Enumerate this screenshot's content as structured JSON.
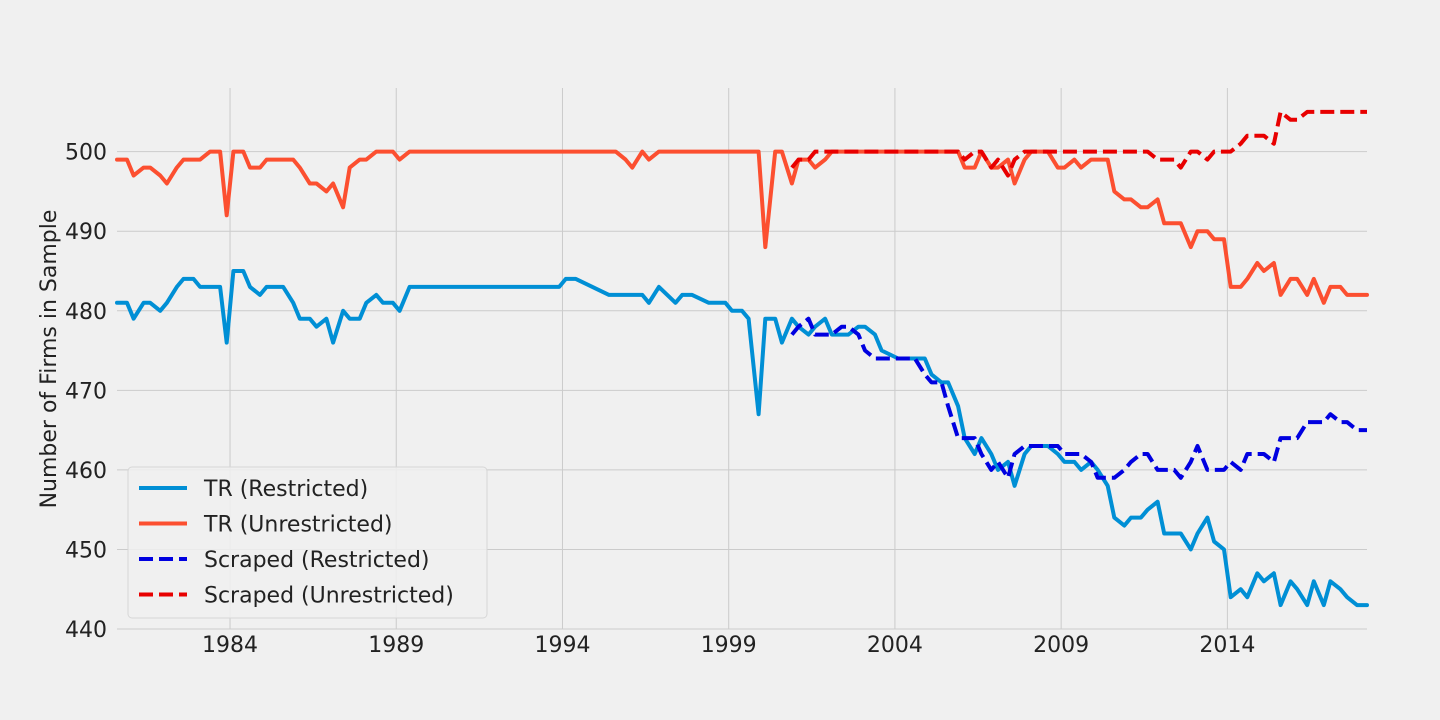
{
  "chart_data": {
    "type": "line",
    "title": "",
    "xlabel": "",
    "ylabel": "Number of Firms in Sample",
    "xlim": [
      1980.6,
      2018.2
    ],
    "ylim": [
      440,
      508
    ],
    "x_ticks": [
      1984,
      1989,
      1994,
      1999,
      2004,
      2009,
      2014
    ],
    "y_ticks": [
      440,
      450,
      460,
      470,
      480,
      490,
      500
    ],
    "grid": true,
    "legend_position": "lower-left",
    "series": [
      {
        "name": "TR (Restricted)",
        "color": "#008fd5",
        "style": "solid",
        "x": [
          1980.6,
          1980.9,
          1981.1,
          1981.4,
          1981.6,
          1981.9,
          1982.1,
          1982.4,
          1982.6,
          1982.9,
          1983.1,
          1983.4,
          1983.6,
          1983.7,
          1983.9,
          1984.1,
          1984.4,
          1984.6,
          1984.9,
          1985.1,
          1985.4,
          1985.6,
          1985.9,
          1986.1,
          1986.4,
          1986.6,
          1986.9,
          1987.1,
          1987.4,
          1987.6,
          1987.9,
          1988.1,
          1988.4,
          1988.6,
          1988.9,
          1989.1,
          1989.4,
          1989.6,
          1990.4,
          1991.4,
          1992.4,
          1993.4,
          1993.6,
          1993.9,
          1994.1,
          1994.4,
          1995.4,
          1995.9,
          1996.1,
          1996.4,
          1996.6,
          1996.9,
          1997.4,
          1997.6,
          1997.9,
          1998.4,
          1998.6,
          1998.9,
          1999.1,
          1999.4,
          1999.6,
          1999.9,
          2000.1,
          2000.4,
          2000.6,
          2000.9,
          2001.1,
          2001.4,
          2001.6,
          2001.9,
          2002.1,
          2002.4,
          2002.6,
          2002.9,
          2003.1,
          2003.4,
          2003.6,
          2004.1,
          2004.6,
          2004.9,
          2005.1,
          2005.4,
          2005.6,
          2005.9,
          2006.1,
          2006.4,
          2006.6,
          2006.9,
          2007.1,
          2007.4,
          2007.6,
          2007.9,
          2008.1,
          2008.4,
          2008.6,
          2008.9,
          2009.1,
          2009.4,
          2009.6,
          2009.9,
          2010.1,
          2010.4,
          2010.6,
          2010.9,
          2011.1,
          2011.4,
          2011.6,
          2011.9,
          2012.1,
          2012.4,
          2012.6,
          2012.9,
          2013.1,
          2013.4,
          2013.6,
          2013.9,
          2014.1,
          2014.4,
          2014.6,
          2014.9,
          2015.1,
          2015.4,
          2015.6,
          2015.9,
          2016.1,
          2016.4,
          2016.6,
          2016.9,
          2017.1,
          2017.4,
          2017.6,
          2017.9,
          2018.2
        ],
        "y": [
          481,
          481,
          479,
          481,
          481,
          480,
          481,
          483,
          484,
          484,
          483,
          483,
          483,
          483,
          476,
          485,
          485,
          483,
          482,
          483,
          483,
          483,
          481,
          479,
          479,
          478,
          479,
          476,
          480,
          479,
          479,
          481,
          482,
          481,
          481,
          480,
          483,
          483,
          483,
          483,
          483,
          483,
          483,
          483,
          484,
          484,
          482,
          482,
          482,
          482,
          481,
          483,
          481,
          482,
          482,
          481,
          481,
          481,
          480,
          480,
          479,
          467,
          479,
          479,
          476,
          479,
          478,
          477,
          478,
          479,
          477,
          477,
          477,
          478,
          478,
          477,
          475,
          474,
          474,
          474,
          472,
          471,
          471,
          468,
          464,
          462,
          464,
          462,
          460,
          461,
          458,
          462,
          463,
          463,
          463,
          462,
          461,
          461,
          460,
          461,
          460,
          458,
          454,
          453,
          454,
          454,
          455,
          456,
          452,
          452,
          452,
          450,
          452,
          454,
          451,
          450,
          444,
          445,
          444,
          447,
          446,
          447,
          443,
          446,
          445,
          443,
          446,
          443,
          446,
          445,
          444,
          443,
          443
        ],
        "legend_label": "TR (Restricted)"
      },
      {
        "name": "TR (Unrestricted)",
        "color": "#fc4f30",
        "style": "solid",
        "x": [
          1980.6,
          1980.9,
          1981.1,
          1981.4,
          1981.6,
          1981.9,
          1982.1,
          1982.4,
          1982.6,
          1982.9,
          1983.1,
          1983.4,
          1983.6,
          1983.7,
          1983.9,
          1984.1,
          1984.4,
          1984.6,
          1984.9,
          1985.1,
          1985.4,
          1985.6,
          1985.9,
          1986.1,
          1986.4,
          1986.6,
          1986.9,
          1987.1,
          1987.4,
          1987.6,
          1987.9,
          1988.1,
          1988.4,
          1988.6,
          1988.9,
          1989.1,
          1989.4,
          1989.6,
          1990.4,
          1991.4,
          1992.4,
          1993.4,
          1994.4,
          1995.4,
          1995.6,
          1995.9,
          1996.1,
          1996.4,
          1996.6,
          1996.9,
          1997.4,
          1998.4,
          1999.4,
          1999.6,
          1999.9,
          2000.1,
          2000.4,
          2000.6,
          2000.9,
          2001.1,
          2001.4,
          2001.6,
          2001.9,
          2002.1,
          2002.4,
          2003.4,
          2004.4,
          2005.4,
          2005.6,
          2005.9,
          2006.1,
          2006.4,
          2006.6,
          2006.9,
          2007.1,
          2007.4,
          2007.6,
          2007.9,
          2008.1,
          2008.4,
          2008.6,
          2008.9,
          2009.1,
          2009.4,
          2009.6,
          2009.9,
          2010.1,
          2010.4,
          2010.6,
          2010.9,
          2011.1,
          2011.4,
          2011.6,
          2011.9,
          2012.1,
          2012.4,
          2012.6,
          2012.9,
          2013.1,
          2013.4,
          2013.6,
          2013.9,
          2014.1,
          2014.4,
          2014.6,
          2014.9,
          2015.1,
          2015.4,
          2015.6,
          2015.9,
          2016.1,
          2016.4,
          2016.6,
          2016.9,
          2017.1,
          2017.4,
          2017.6,
          2017.9,
          2018.2
        ],
        "y": [
          499,
          499,
          497,
          498,
          498,
          497,
          496,
          498,
          499,
          499,
          499,
          500,
          500,
          500,
          492,
          500,
          500,
          498,
          498,
          499,
          499,
          499,
          499,
          498,
          496,
          496,
          495,
          496,
          493,
          498,
          499,
          499,
          500,
          500,
          500,
          499,
          500,
          500,
          500,
          500,
          500,
          500,
          500,
          500,
          500,
          499,
          498,
          500,
          499,
          500,
          500,
          500,
          500,
          500,
          500,
          488,
          500,
          500,
          496,
          499,
          499,
          498,
          499,
          500,
          500,
          500,
          500,
          500,
          500,
          500,
          498,
          498,
          500,
          498,
          498,
          499,
          496,
          499,
          500,
          500,
          500,
          498,
          498,
          499,
          498,
          499,
          499,
          499,
          495,
          494,
          494,
          493,
          493,
          494,
          491,
          491,
          491,
          488,
          490,
          490,
          489,
          489,
          483,
          483,
          484,
          486,
          485,
          486,
          482,
          484,
          484,
          482,
          484,
          481,
          483,
          483,
          482,
          482,
          482
        ],
        "legend_label": "TR (Unrestricted)"
      },
      {
        "name": "Scraped (Restricted)",
        "color": "#0000e0",
        "style": "dashed",
        "x": [
          2000.9,
          2001.1,
          2001.4,
          2001.6,
          2001.9,
          2002.1,
          2002.4,
          2002.6,
          2002.9,
          2003.1,
          2003.4,
          2003.6,
          2004.1,
          2004.6,
          2004.9,
          2005.1,
          2005.4,
          2005.6,
          2005.9,
          2006.1,
          2006.4,
          2006.6,
          2006.9,
          2007.1,
          2007.4,
          2007.6,
          2007.9,
          2008.1,
          2008.4,
          2008.6,
          2008.9,
          2009.1,
          2009.4,
          2009.6,
          2009.9,
          2010.1,
          2010.4,
          2010.6,
          2010.9,
          2011.1,
          2011.4,
          2011.6,
          2011.9,
          2012.1,
          2012.4,
          2012.6,
          2012.9,
          2013.1,
          2013.4,
          2013.6,
          2013.9,
          2014.1,
          2014.4,
          2014.6,
          2014.9,
          2015.1,
          2015.4,
          2015.6,
          2015.9,
          2016.1,
          2016.4,
          2016.6,
          2016.9,
          2017.1,
          2017.4,
          2017.6,
          2017.9,
          2018.2
        ],
        "y": [
          477,
          478,
          479,
          477,
          477,
          477,
          478,
          478,
          477,
          475,
          474,
          474,
          474,
          474,
          472,
          471,
          471,
          468,
          464,
          464,
          464,
          462,
          460,
          461,
          459,
          462,
          463,
          463,
          463,
          463,
          463,
          462,
          462,
          462,
          461,
          459,
          459,
          459,
          460,
          461,
          462,
          462,
          460,
          460,
          460,
          459,
          461,
          463,
          460,
          460,
          460,
          461,
          460,
          462,
          462,
          462,
          461,
          464,
          464,
          464,
          466,
          466,
          466,
          467,
          466,
          466,
          465,
          465
        ],
        "legend_label": "Scraped (Restricted)"
      },
      {
        "name": "Scraped (Unrestricted)",
        "color": "#e80000",
        "style": "dashed",
        "x": [
          2000.9,
          2001.1,
          2001.4,
          2001.6,
          2001.9,
          2002.4,
          2003.4,
          2004.4,
          2005.4,
          2005.6,
          2005.9,
          2006.1,
          2006.4,
          2006.6,
          2006.9,
          2007.1,
          2007.4,
          2007.6,
          2007.9,
          2008.1,
          2008.4,
          2008.6,
          2008.9,
          2009.4,
          2010.4,
          2011.4,
          2011.6,
          2011.9,
          2012.1,
          2012.4,
          2012.6,
          2012.9,
          2013.1,
          2013.4,
          2013.6,
          2013.9,
          2014.1,
          2014.4,
          2014.6,
          2014.9,
          2015.1,
          2015.4,
          2015.6,
          2015.9,
          2016.1,
          2016.4,
          2016.6,
          2016.9,
          2017.4,
          2018.2
        ],
        "y": [
          498,
          499,
          499,
          500,
          500,
          500,
          500,
          500,
          500,
          500,
          500,
          499,
          500,
          500,
          498,
          499,
          497,
          499,
          500,
          500,
          500,
          500,
          500,
          500,
          500,
          500,
          500,
          499,
          499,
          499,
          498,
          500,
          500,
          499,
          500,
          500,
          500,
          501,
          502,
          502,
          502,
          501,
          505,
          504,
          504,
          505,
          505,
          505,
          505,
          505
        ],
        "legend_label": "Scraped (Unrestricted)"
      }
    ]
  }
}
